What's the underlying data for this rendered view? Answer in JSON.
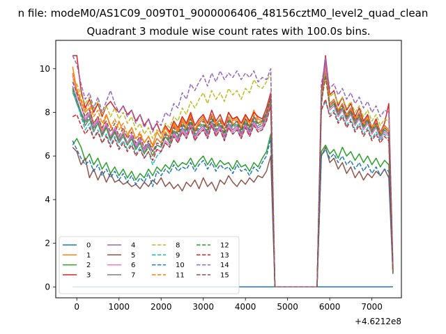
{
  "figure": {
    "suptitle": "n file: modeM0/AS1C09_009T01_9000006406_48156cztM0_level2_quad_clean",
    "x_offset": "+4.6212e8"
  },
  "chart_data": {
    "type": "line",
    "title": "Quadrant 3 module wise count rates with 100.0s bins.",
    "xlabel": "",
    "ylabel": "",
    "xlim": [
      -500,
      7700
    ],
    "ylim": [
      -0.5,
      11.3
    ],
    "x_ticks": [
      0,
      1000,
      2000,
      3000,
      4000,
      5000,
      6000,
      7000
    ],
    "y_ticks": [
      0,
      2,
      4,
      6,
      8,
      10
    ],
    "grid": false,
    "legend_placement": "lower-left",
    "legend_columns": 4,
    "x_start": -100,
    "x_step": 100,
    "series": [
      {
        "name": "0",
        "color": "#1f77b4",
        "dash": "solid",
        "values": [
          0
        ]
      },
      {
        "name": "1",
        "color": "#ff7f0e",
        "dash": "solid",
        "values": [
          10.1,
          9.0,
          8.5,
          8.0,
          8.2,
          7.5,
          7.8,
          7.2,
          7.9,
          7.4,
          7.0,
          7.6,
          7.1,
          6.9,
          7.3,
          6.8,
          7.0,
          6.6,
          6.9,
          6.5,
          7.1,
          6.8,
          7.3,
          7.0,
          7.5,
          7.2,
          7.7,
          7.4,
          7.9,
          7.2,
          7.6,
          7.8,
          7.3,
          7.9,
          7.5,
          7.7,
          7.4,
          8.0,
          7.6,
          7.8,
          7.3,
          7.9,
          7.5,
          8.1,
          7.7,
          7.6,
          7.9,
          8.6,
          0,
          0,
          0,
          0,
          0,
          0,
          0,
          0,
          0,
          0,
          0,
          8.7,
          10.2,
          8.3,
          8.5,
          8.0,
          8.4,
          7.8,
          8.1,
          7.6,
          7.9,
          7.4,
          7.7,
          7.2,
          7.5,
          7.0,
          7.3,
          7.1,
          0.8
        ]
      },
      {
        "name": "2",
        "color": "#2ca02c",
        "dash": "solid",
        "values": [
          6.5,
          6.8,
          6.4,
          5.8,
          6.1,
          5.6,
          5.9,
          5.4,
          5.7,
          5.2,
          5.5,
          5.1,
          5.4,
          5.0,
          5.3,
          4.9,
          5.2,
          5.0,
          5.4,
          5.1,
          5.5,
          5.3,
          5.6,
          5.4,
          5.8,
          5.5,
          5.7,
          5.6,
          5.9,
          5.5,
          5.8,
          6.0,
          5.6,
          5.9,
          5.5,
          5.8,
          5.6,
          5.7,
          5.4,
          5.8,
          5.5,
          5.6,
          5.3,
          5.7,
          5.5,
          5.9,
          6.2,
          7.0,
          0,
          0,
          0,
          0,
          0,
          0,
          0,
          0,
          0,
          0,
          0,
          6.2,
          6.5,
          6.1,
          6.3,
          5.9,
          6.4,
          6.0,
          6.2,
          5.8,
          6.1,
          5.7,
          6.0,
          5.6,
          5.9,
          5.5,
          5.8,
          5.6,
          0.6
        ]
      },
      {
        "name": "3",
        "color": "#d62728",
        "dash": "solid",
        "values": [
          10.6,
          10.6,
          9.0,
          8.2,
          8.6,
          8.0,
          8.4,
          7.8,
          8.3,
          8.5,
          8.2,
          8.0,
          8.3,
          7.9,
          8.1,
          7.6,
          7.9,
          7.4,
          7.7,
          7.2,
          7.5,
          7.0,
          7.4,
          7.1,
          7.6,
          7.3,
          7.8,
          7.5,
          8.0,
          7.4,
          7.7,
          7.9,
          7.5,
          8.1,
          7.6,
          7.9,
          7.4,
          8.0,
          7.7,
          7.8,
          7.5,
          7.9,
          7.6,
          8.0,
          7.8,
          7.7,
          8.2,
          8.9,
          0,
          0,
          0,
          0,
          0,
          0,
          0,
          0,
          0,
          0,
          0,
          8.9,
          10.6,
          8.8,
          9.0,
          8.3,
          8.7,
          8.1,
          8.4,
          7.8,
          8.2,
          7.6,
          7.9,
          7.3,
          7.7,
          7.1,
          7.5,
          8.4,
          0.9
        ]
      },
      {
        "name": "4",
        "color": "#9467bd",
        "dash": "solid",
        "values": [
          9.2,
          8.6,
          8.0,
          7.6,
          7.9,
          7.3,
          7.6,
          7.0,
          7.4,
          6.8,
          7.2,
          6.7,
          7.0,
          6.6,
          6.9,
          6.4,
          6.7,
          6.3,
          6.6,
          6.2,
          6.5,
          6.4,
          6.9,
          6.6,
          7.1,
          6.8,
          7.3,
          7.0,
          7.5,
          6.9,
          7.2,
          7.4,
          7.0,
          7.6,
          7.1,
          7.4,
          6.9,
          7.5,
          7.2,
          7.4,
          7.0,
          7.5,
          7.1,
          7.6,
          7.3,
          7.4,
          7.8,
          8.5,
          0,
          0,
          0,
          0,
          0,
          0,
          0,
          0,
          0,
          0,
          0,
          8.4,
          10.5,
          8.2,
          8.4,
          7.9,
          8.2,
          7.7,
          8.0,
          7.5,
          7.8,
          7.3,
          7.6,
          7.1,
          7.4,
          6.9,
          7.2,
          7.0,
          0.7
        ]
      },
      {
        "name": "5",
        "color": "#8c564b",
        "dash": "solid",
        "values": [
          6.4,
          6.2,
          5.6,
          5.9,
          5.0,
          5.4,
          4.9,
          5.3,
          4.8,
          5.2,
          4.8,
          4.9,
          4.7,
          4.8,
          4.6,
          4.7,
          4.5,
          4.8,
          4.6,
          4.9,
          4.7,
          5.0,
          4.6,
          4.8,
          4.5,
          4.7,
          4.4,
          4.8,
          4.6,
          4.9,
          4.5,
          5.0,
          4.6,
          4.8,
          4.4,
          4.9,
          4.7,
          5.1,
          4.8,
          4.6,
          4.9,
          4.7,
          5.0,
          4.8,
          5.1,
          5.0,
          5.3,
          6.0,
          0,
          0,
          0,
          0,
          0,
          0,
          0,
          0,
          0,
          0,
          0,
          6.0,
          6.4,
          5.7,
          5.9,
          5.4,
          5.7,
          5.2,
          5.5,
          5.0,
          5.3,
          4.9,
          5.2,
          5.0,
          5.3,
          5.1,
          5.4,
          5.0,
          0.6
        ]
      },
      {
        "name": "6",
        "color": "#e377c2",
        "dash": "solid",
        "values": [
          9.7,
          8.8,
          8.3,
          7.7,
          8.0,
          7.4,
          7.7,
          7.1,
          7.5,
          6.9,
          7.3,
          6.8,
          7.1,
          6.6,
          7.0,
          6.5,
          6.8,
          6.2,
          6.5,
          6.0,
          6.3,
          6.2,
          6.7,
          6.5,
          7.0,
          6.7,
          7.2,
          6.9,
          7.4,
          6.8,
          7.1,
          7.3,
          6.9,
          7.5,
          7.0,
          7.3,
          6.8,
          7.4,
          7.1,
          7.3,
          6.9,
          7.4,
          7.0,
          7.5,
          7.2,
          7.3,
          7.7,
          8.4,
          0,
          0,
          0,
          0,
          0,
          0,
          0,
          0,
          0,
          0,
          0,
          8.3,
          10.0,
          8.1,
          8.3,
          7.8,
          8.1,
          7.6,
          7.9,
          7.4,
          7.7,
          7.2,
          7.5,
          7.0,
          7.3,
          6.8,
          7.1,
          6.9,
          0.7
        ]
      },
      {
        "name": "7",
        "color": "#7f7f7f",
        "dash": "solid",
        "values": [
          9.0,
          8.4,
          7.9,
          7.4,
          7.7,
          7.1,
          7.5,
          6.9,
          7.3,
          6.7,
          7.1,
          6.6,
          6.9,
          6.5,
          6.8,
          6.3,
          6.6,
          6.1,
          6.5,
          6.4,
          6.8,
          6.6,
          7.1,
          6.8,
          7.4,
          7.1,
          7.6,
          7.2,
          7.8,
          7.1,
          7.5,
          7.7,
          7.3,
          7.9,
          7.4,
          7.7,
          7.2,
          7.8,
          7.4,
          7.6,
          7.2,
          7.7,
          7.3,
          7.8,
          7.5,
          7.6,
          8.0,
          8.7,
          0,
          0,
          0,
          0,
          0,
          0,
          0,
          0,
          0,
          0,
          0,
          8.6,
          9.8,
          8.4,
          8.6,
          8.1,
          8.4,
          7.9,
          8.2,
          7.7,
          8.0,
          7.5,
          7.8,
          7.3,
          7.6,
          7.1,
          7.4,
          7.2,
          0.7
        ]
      },
      {
        "name": "8",
        "color": "#bcbd22",
        "dash": "dashed",
        "values": [
          9.5,
          9.3,
          8.8,
          8.4,
          8.7,
          8.1,
          8.5,
          7.9,
          8.3,
          7.8,
          8.2,
          7.7,
          8.0,
          7.5,
          7.8,
          7.2,
          7.5,
          7.0,
          7.3,
          6.8,
          7.2,
          7.0,
          7.5,
          7.3,
          7.8,
          7.6,
          8.2,
          7.9,
          8.5,
          8.2,
          8.6,
          8.9,
          8.4,
          9.0,
          8.6,
          8.9,
          8.5,
          9.1,
          8.8,
          9.0,
          8.6,
          9.1,
          8.9,
          9.5,
          9.2,
          9.1,
          9.4,
          9.8,
          0,
          0,
          0,
          0,
          0,
          0,
          0,
          0,
          0,
          0,
          0,
          8.8,
          9.6,
          8.7,
          8.9,
          8.4,
          8.7,
          8.2,
          8.5,
          8.0,
          8.3,
          7.8,
          8.1,
          7.6,
          7.9,
          7.4,
          7.7,
          7.6,
          0.8
        ]
      },
      {
        "name": "9",
        "color": "#17becf",
        "dash": "dashed",
        "values": [
          8.9,
          8.5,
          7.8,
          7.2,
          7.5,
          6.8,
          7.2,
          6.6,
          7.0,
          6.5,
          6.9,
          6.4,
          6.7,
          6.3,
          6.6,
          6.1,
          6.4,
          5.9,
          6.2,
          5.6,
          6.0,
          6.2,
          6.6,
          6.4,
          6.9,
          6.6,
          7.1,
          6.8,
          7.3,
          6.7,
          7.0,
          7.2,
          6.8,
          7.4,
          6.9,
          7.2,
          6.7,
          7.3,
          7.0,
          7.2,
          6.8,
          7.3,
          6.9,
          7.4,
          7.1,
          7.2,
          7.6,
          8.3,
          0,
          0,
          0,
          0,
          0,
          0,
          0,
          0,
          0,
          0,
          0,
          8.1,
          8.5,
          7.9,
          8.1,
          7.6,
          7.9,
          7.4,
          7.7,
          7.2,
          7.5,
          7.0,
          7.3,
          6.8,
          7.1,
          6.7,
          7.0,
          6.8,
          0.7
        ]
      },
      {
        "name": "10",
        "color": "#1f77b4",
        "dash": "dashed",
        "values": [
          6.7,
          6.3,
          5.9,
          5.6,
          5.8,
          5.3,
          5.6,
          5.1,
          5.4,
          5.0,
          5.3,
          4.9,
          5.2,
          4.8,
          5.1,
          4.7,
          5.0,
          4.8,
          5.2,
          4.6,
          5.3,
          5.1,
          5.4,
          5.2,
          5.6,
          5.3,
          5.5,
          5.4,
          5.7,
          5.3,
          5.6,
          5.8,
          5.4,
          5.7,
          5.3,
          5.6,
          5.4,
          5.5,
          5.2,
          5.6,
          5.3,
          5.4,
          5.1,
          5.5,
          5.3,
          5.7,
          6.0,
          6.8,
          0,
          0,
          0,
          0,
          0,
          0,
          0,
          0,
          0,
          0,
          0,
          6.0,
          6.3,
          5.9,
          6.1,
          5.7,
          6.0,
          5.6,
          5.8,
          5.4,
          5.7,
          5.3,
          5.6,
          5.2,
          5.5,
          5.1,
          5.4,
          5.3,
          0.6
        ]
      },
      {
        "name": "11",
        "color": "#ff7f0e",
        "dash": "dashed",
        "values": [
          9.8,
          9.1,
          8.6,
          8.1,
          8.4,
          7.8,
          8.1,
          7.5,
          7.9,
          7.3,
          7.7,
          7.2,
          7.5,
          7.0,
          7.3,
          6.8,
          7.1,
          6.6,
          6.9,
          6.4,
          6.8,
          6.6,
          7.1,
          6.9,
          7.4,
          7.1,
          7.6,
          7.3,
          7.8,
          7.2,
          7.5,
          7.7,
          7.3,
          7.9,
          7.4,
          7.7,
          7.2,
          7.8,
          7.5,
          7.7,
          7.3,
          7.8,
          7.4,
          7.9,
          7.6,
          7.5,
          7.9,
          8.6,
          0,
          0,
          0,
          0,
          0,
          0,
          0,
          0,
          0,
          0,
          0,
          8.5,
          9.9,
          8.4,
          8.6,
          8.1,
          8.4,
          7.9,
          8.2,
          7.7,
          8.0,
          7.5,
          7.8,
          7.3,
          7.6,
          7.1,
          7.4,
          7.2,
          0.8
        ]
      },
      {
        "name": "12",
        "color": "#2ca02c",
        "dash": "dashed",
        "values": [
          9.1,
          8.5,
          8.0,
          7.5,
          7.8,
          7.2,
          7.5,
          7.0,
          7.3,
          6.8,
          7.1,
          6.7,
          7.0,
          6.5,
          6.8,
          6.3,
          6.6,
          6.1,
          6.4,
          6.0,
          6.5,
          6.4,
          6.9,
          6.6,
          7.2,
          6.9,
          7.4,
          7.1,
          7.6,
          7.0,
          7.3,
          7.5,
          7.1,
          7.7,
          7.2,
          7.5,
          7.0,
          7.6,
          7.3,
          7.5,
          7.1,
          7.6,
          7.2,
          7.7,
          7.4,
          7.5,
          7.9,
          8.6,
          0,
          0,
          0,
          0,
          0,
          0,
          0,
          0,
          0,
          0,
          0,
          8.4,
          9.7,
          8.2,
          8.4,
          7.9,
          8.2,
          7.7,
          8.0,
          7.5,
          7.8,
          7.3,
          7.6,
          7.1,
          7.4,
          6.9,
          7.2,
          7.0,
          0.7
        ]
      },
      {
        "name": "13",
        "color": "#d62728",
        "dash": "dashed",
        "values": [
          7.8,
          7.9,
          7.4,
          7.0,
          7.3,
          6.8,
          7.1,
          6.6,
          6.9,
          6.4,
          6.8,
          6.3,
          6.6,
          6.2,
          6.5,
          6.0,
          6.3,
          5.9,
          6.2,
          5.8,
          6.3,
          6.2,
          6.6,
          6.4,
          6.9,
          6.6,
          7.1,
          6.8,
          7.3,
          6.7,
          7.0,
          7.2,
          6.8,
          7.4,
          6.9,
          7.2,
          6.7,
          7.3,
          7.0,
          7.2,
          6.8,
          7.3,
          6.9,
          7.4,
          7.1,
          7.2,
          7.6,
          8.3,
          0,
          0,
          0,
          0,
          0,
          0,
          0,
          0,
          0,
          0,
          0,
          8.1,
          8.6,
          7.8,
          8.0,
          7.5,
          7.8,
          7.3,
          7.6,
          7.1,
          7.4,
          6.9,
          7.2,
          6.7,
          7.0,
          6.6,
          6.9,
          6.7,
          0.7
        ]
      },
      {
        "name": "14",
        "color": "#9467bd",
        "dash": "dashed",
        "values": [
          10.6,
          10.2,
          9.3,
          8.6,
          8.9,
          8.2,
          8.7,
          8.0,
          8.5,
          9.0,
          8.4,
          8.0,
          8.3,
          7.8,
          8.1,
          7.5,
          7.9,
          7.3,
          7.7,
          7.1,
          7.6,
          7.4,
          8.0,
          7.8,
          8.4,
          8.2,
          8.9,
          8.6,
          9.3,
          9.0,
          9.4,
          9.7,
          9.2,
          9.8,
          9.4,
          9.9,
          9.5,
          9.8,
          9.6,
          9.9,
          9.5,
          9.8,
          9.6,
          9.9,
          9.4,
          9.6,
          9.5,
          10.0,
          0,
          0,
          0,
          0,
          0,
          0,
          0,
          0,
          0,
          0,
          0,
          9.3,
          10.3,
          9.1,
          9.3,
          8.8,
          9.1,
          8.6,
          8.9,
          8.4,
          8.7,
          8.2,
          8.5,
          8.0,
          8.3,
          7.8,
          8.1,
          8.0,
          0.9
        ]
      },
      {
        "name": "15",
        "color": "#8c564b",
        "dash": "dashed",
        "values": [
          9.4,
          8.9,
          8.3,
          7.8,
          8.1,
          7.5,
          7.8,
          7.3,
          7.6,
          7.1,
          7.5,
          6.9,
          7.3,
          6.8,
          7.1,
          6.6,
          6.9,
          6.4,
          6.7,
          6.2,
          6.6,
          6.5,
          7.0,
          6.7,
          7.3,
          7.0,
          7.5,
          7.2,
          7.7,
          7.1,
          7.4,
          7.6,
          7.2,
          7.8,
          7.3,
          7.6,
          7.1,
          7.7,
          7.4,
          7.6,
          7.2,
          7.7,
          7.3,
          7.8,
          7.5,
          7.6,
          8.0,
          8.7,
          0,
          0,
          0,
          0,
          0,
          0,
          0,
          0,
          0,
          0,
          0,
          8.5,
          9.6,
          8.3,
          8.5,
          8.0,
          8.3,
          7.8,
          8.1,
          7.6,
          7.9,
          7.4,
          7.7,
          7.2,
          7.5,
          7.0,
          7.3,
          7.1,
          0.8
        ]
      }
    ]
  }
}
